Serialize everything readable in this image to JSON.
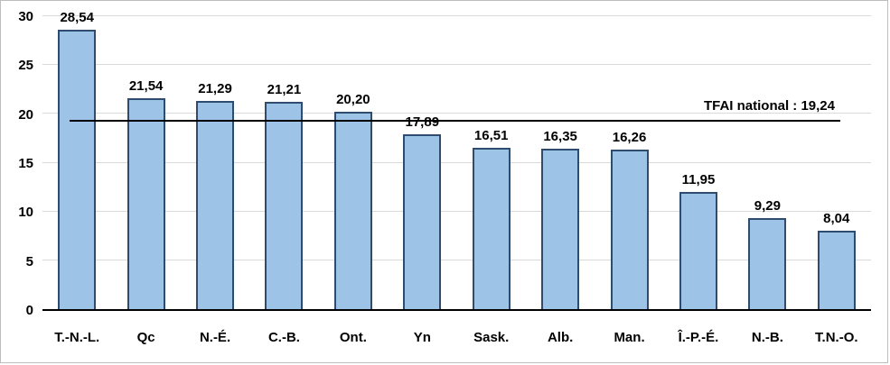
{
  "chart_data": {
    "type": "bar",
    "categories": [
      "T.-N.-L.",
      "Qc",
      "N.-É.",
      "C.-B.",
      "Ont.",
      "Yn",
      "Sask.",
      "Alb.",
      "Man.",
      "Î.-P.-É.",
      "N.-B.",
      "T.N.-O."
    ],
    "values": [
      28.54,
      21.54,
      21.29,
      21.21,
      20.2,
      17.89,
      16.51,
      16.35,
      16.26,
      11.95,
      9.29,
      8.04
    ],
    "value_labels": [
      "28,54",
      "21,54",
      "21,29",
      "21,21",
      "20,20",
      "17,89",
      "16,51",
      "16,35",
      "16,26",
      "11,95",
      "9,29",
      "8,04"
    ],
    "title": "",
    "xlabel": "",
    "ylabel": "",
    "ylim": [
      0,
      30
    ],
    "yticks": [
      0,
      5,
      10,
      15,
      20,
      25,
      30
    ],
    "grid": true,
    "legend": "none",
    "reference_line": {
      "value": 19.24,
      "label": "TFAI national : 19,24"
    },
    "colors": {
      "bar_fill": "#9dc3e6",
      "bar_border": "#2e4d6e",
      "grid": "#d9d9d9",
      "axis": "#000000",
      "frame": "#bdbdbd"
    }
  }
}
